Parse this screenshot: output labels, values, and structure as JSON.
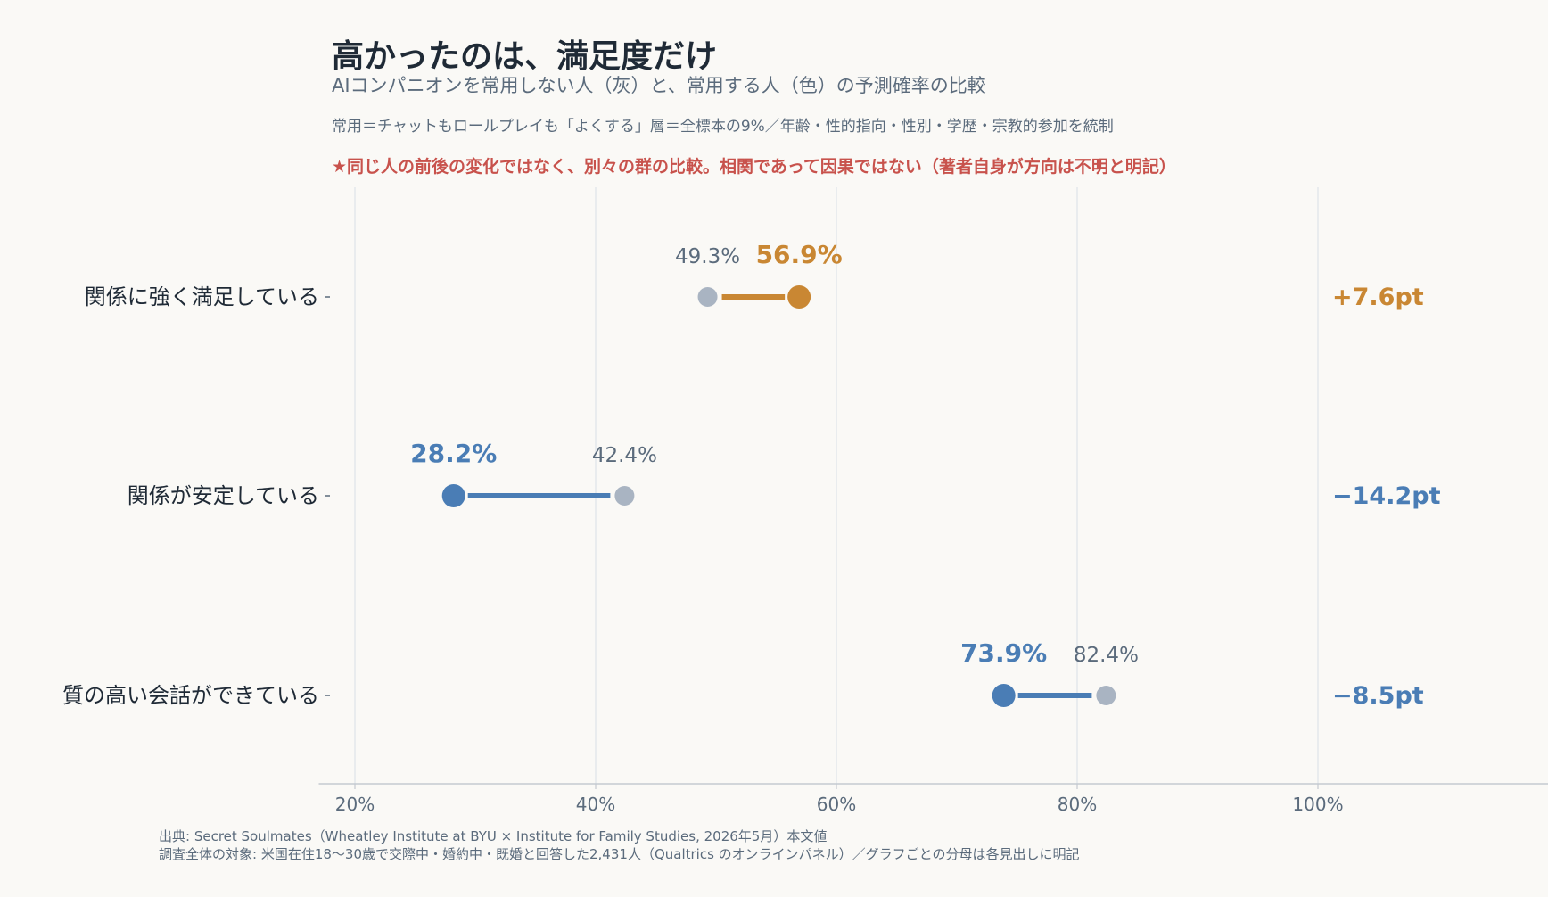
{
  "header": {
    "title": "高かったのは、満足度だけ",
    "subtitle": "AIコンパニオンを常用しない人（灰）と、常用する人（色）の予測確率の比較",
    "note": "常用＝チャットもロールプレイも「よくする」層＝全標本の9%／年齢・性的指向・性別・学歴・宗教的参加を統制",
    "warning": "★同じ人の前後の変化ではなく、別々の群の比較。相関であって因果ではない（著者自身が方向は不明と明記）"
  },
  "footer": {
    "source": "出典: Secret Soulmates（Wheatley Institute at BYU × Institute for Family Studies, 2026年5月）本文値",
    "population": "調査全体の対象: 米国在住18〜30歳で交際中・婚約中・既婚と回答した2,431人（Qualtrics のオンラインパネル）／グラフごとの分母は各見出しに明記"
  },
  "colors": {
    "background": "#faf9f6",
    "nonuser": "#a9b4c2",
    "increase": "#c98733",
    "decrease": "#4a7db5",
    "grid": "#e3e7ec",
    "text": "#1f2a36",
    "muted": "#5b6b7c"
  },
  "chart_data": {
    "type": "dumbbell",
    "xlim": [
      19,
      115
    ],
    "xticks": [
      20,
      40,
      60,
      80,
      100
    ],
    "xtick_labels": [
      "20%",
      "40%",
      "60%",
      "80%",
      "100%"
    ],
    "grid": true,
    "rows": [
      {
        "label": "関係に強く満足している",
        "nonuser": 49.3,
        "user": 56.9,
        "nonuser_label": "49.3%",
        "user_label": "56.9%",
        "diff_label": "+7.6pt",
        "direction": "increase"
      },
      {
        "label": "関係が安定している",
        "nonuser": 42.4,
        "user": 28.2,
        "nonuser_label": "42.4%",
        "user_label": "28.2%",
        "diff_label": "−14.2pt",
        "direction": "decrease"
      },
      {
        "label": "質の高い会話ができている",
        "nonuser": 82.4,
        "user": 73.9,
        "nonuser_label": "82.4%",
        "user_label": "73.9%",
        "diff_label": "−8.5pt",
        "direction": "decrease"
      }
    ]
  }
}
